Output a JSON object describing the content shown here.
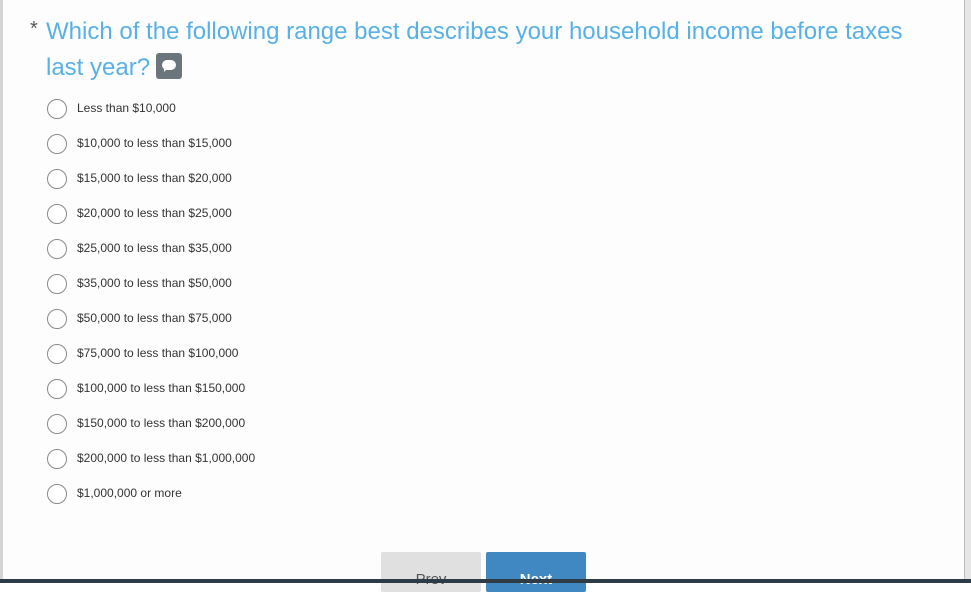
{
  "question": {
    "required_marker": "*",
    "text": "Which of the following range best describes your household income before taxes last year?",
    "comment_icon": "comment-icon"
  },
  "options": [
    "Less than $10,000",
    "$10,000 to less than $15,000",
    "$15,000 to less than $20,000",
    "$20,000 to less than $25,000",
    "$25,000 to less than $35,000",
    "$35,000 to less than $50,000",
    "$50,000 to less than $75,000",
    "$75,000 to less than $100,000",
    "$100,000 to less than $150,000",
    "$150,000 to less than $200,000",
    "$200,000 to less than $1,000,000",
    "$1,000,000 or more"
  ],
  "nav": {
    "prev_label": "Prev",
    "next_label": "Next"
  },
  "colors": {
    "question": "#57b0e6",
    "next_button": "#3f88c1",
    "prev_button": "#e0e0e0"
  }
}
